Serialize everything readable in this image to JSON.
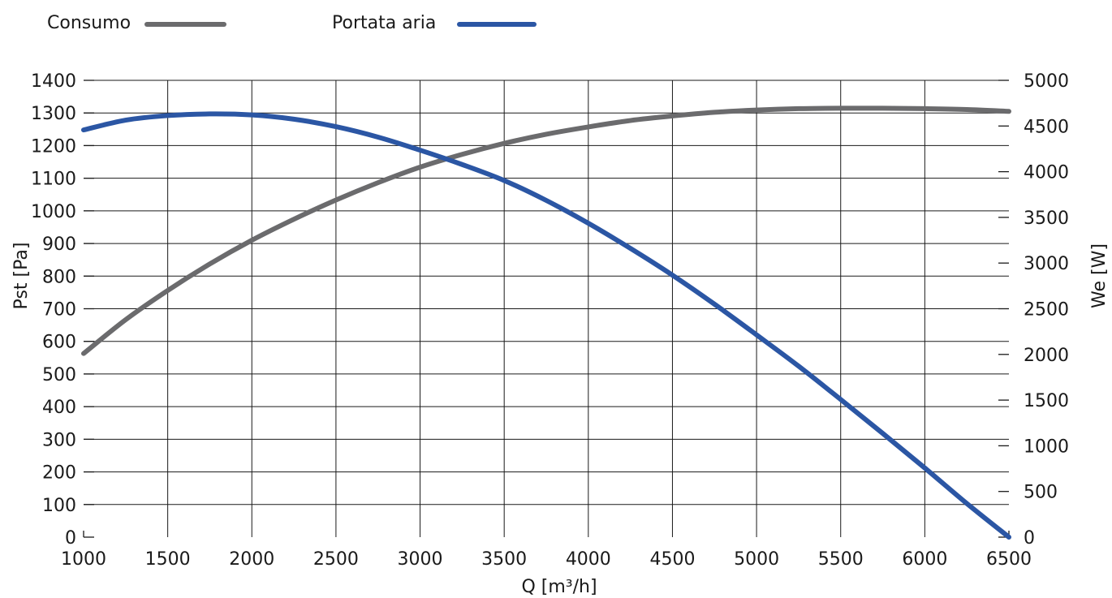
{
  "chart_data": {
    "type": "line",
    "x_label": "Q [m³/h]",
    "y_left_label": "Pst [Pa]",
    "y_right_label": "We [W]",
    "x_range": [
      1000,
      6500
    ],
    "x_ticks": [
      1000,
      1500,
      2000,
      2500,
      3000,
      3500,
      4000,
      4500,
      5000,
      5500,
      6000,
      6500
    ],
    "y_left_range": [
      0,
      1400
    ],
    "y_left_ticks": [
      0,
      100,
      200,
      300,
      400,
      500,
      600,
      700,
      800,
      900,
      1000,
      1100,
      1200,
      1300,
      1400
    ],
    "y_right_range": [
      0,
      5000
    ],
    "y_right_ticks": [
      0,
      500,
      1000,
      1500,
      2000,
      2500,
      3000,
      3500,
      4000,
      4500,
      5000
    ],
    "grid": true,
    "legend_position": "top-left",
    "series": [
      {
        "name": "Consumo",
        "color": "#6b6b6d",
        "axis": "right",
        "x": [
          1000,
          1250,
          1500,
          1750,
          2000,
          2250,
          2500,
          2750,
          3000,
          3250,
          3500,
          3750,
          4000,
          4250,
          4500,
          4750,
          5000,
          5250,
          5500,
          5750,
          6000,
          6250,
          6500
        ],
        "y": [
          2010,
          2380,
          2700,
          2990,
          3250,
          3480,
          3690,
          3880,
          4050,
          4190,
          4310,
          4410,
          4490,
          4560,
          4610,
          4650,
          4675,
          4690,
          4695,
          4695,
          4690,
          4680,
          4660
        ]
      },
      {
        "name": "Portata aria",
        "color": "#2b56a4",
        "axis": "left",
        "x": [
          1000,
          1250,
          1500,
          1750,
          2000,
          2250,
          2500,
          2750,
          3000,
          3250,
          3500,
          3750,
          4000,
          4250,
          4500,
          4750,
          5000,
          5250,
          5500,
          5750,
          6000,
          6250,
          6500
        ],
        "y": [
          1248,
          1278,
          1292,
          1297,
          1294,
          1281,
          1258,
          1226,
          1186,
          1142,
          1093,
          1032,
          962,
          885,
          803,
          714,
          620,
          524,
          422,
          318,
          212,
          103,
          0
        ]
      }
    ]
  }
}
